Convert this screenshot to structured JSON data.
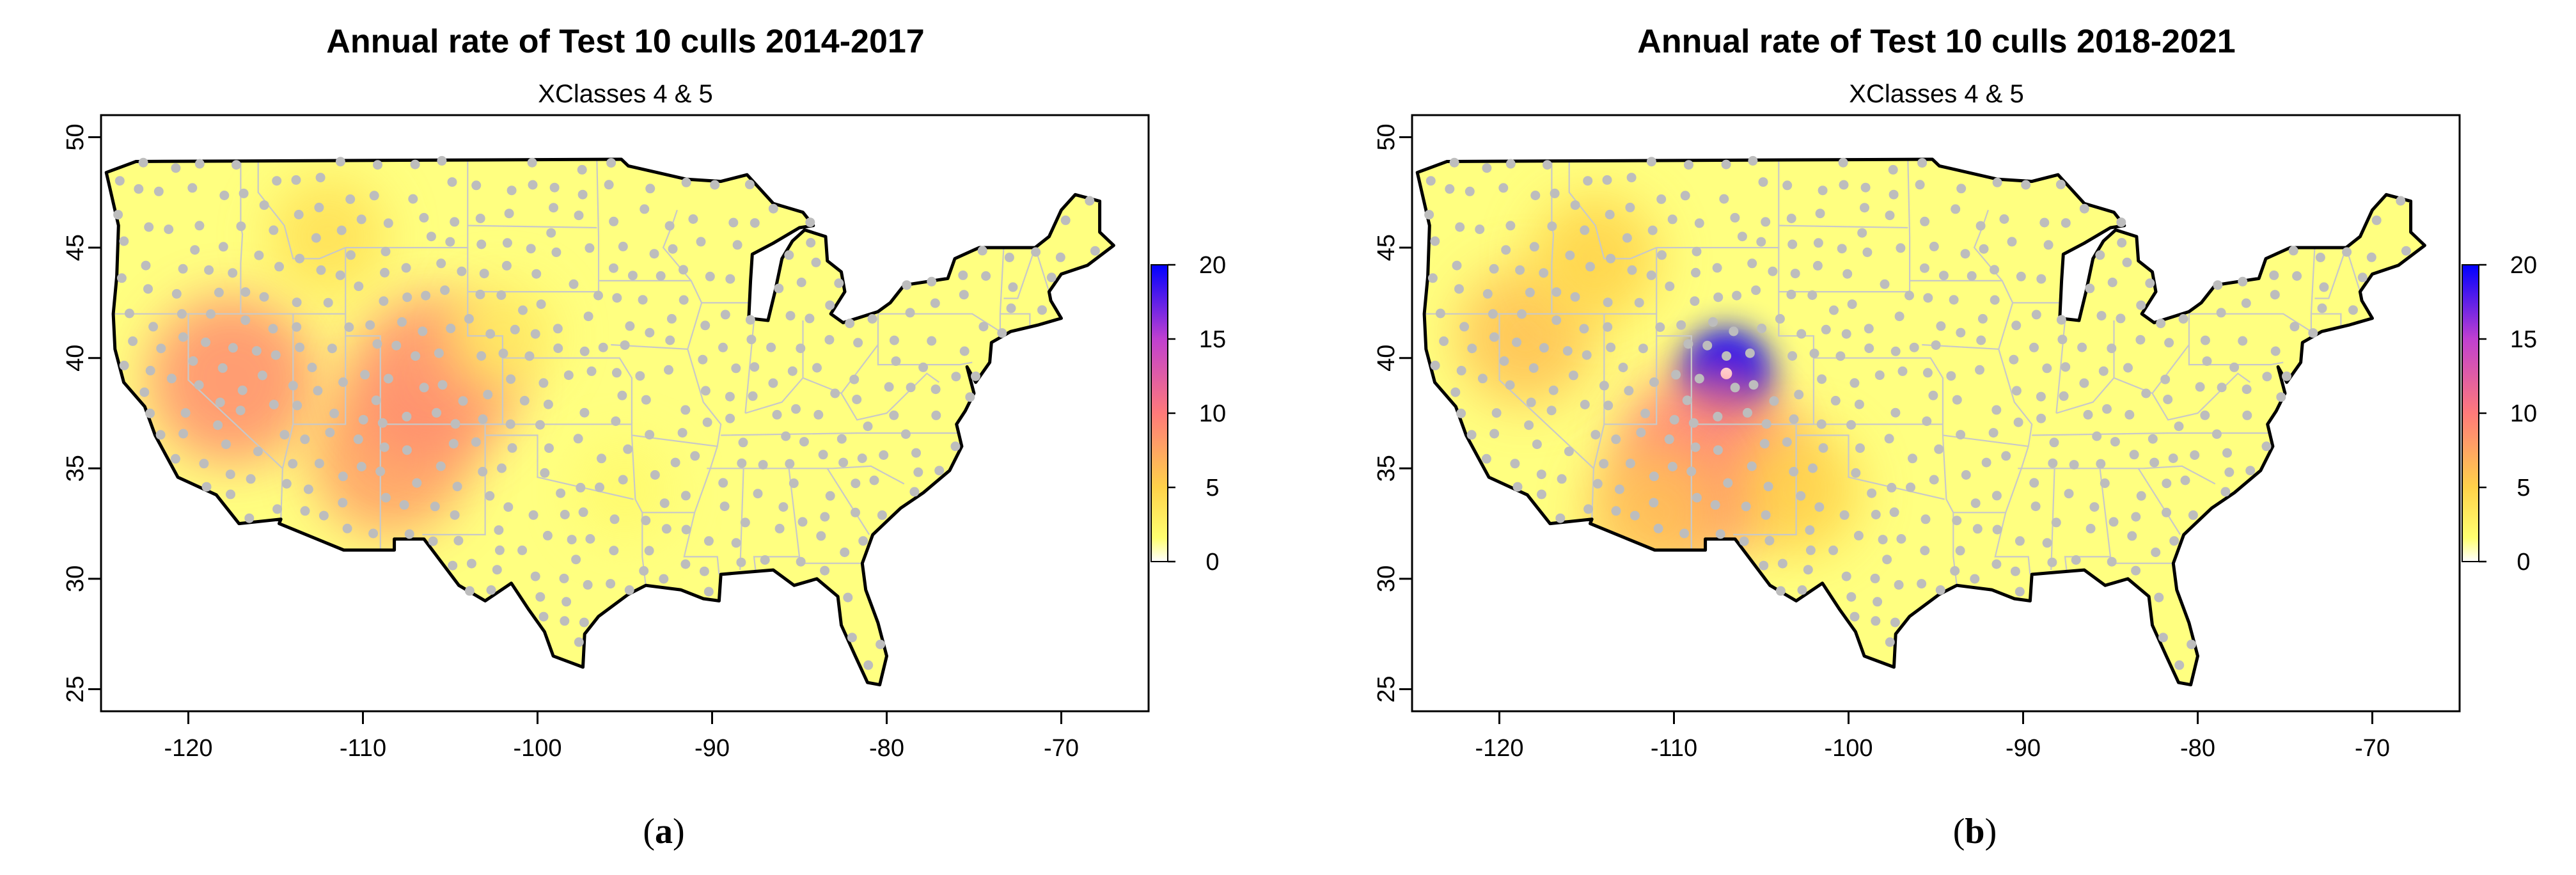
{
  "panels": [
    {
      "id": "a",
      "title": "Annual rate of Test 10 culls 2014-2017",
      "subtitle": "XClasses 4 & 5",
      "label_open": "(",
      "label_letter": "a",
      "label_close": ")",
      "hotspots": [
        {
          "lon": -117.5,
          "lat": 39.0,
          "value": 9
        },
        {
          "lon": -108.5,
          "lat": 35.5,
          "value": 8
        },
        {
          "lon": -106.0,
          "lat": 39.0,
          "value": 9
        },
        {
          "lon": -112.0,
          "lat": 45.5,
          "value": 4
        },
        {
          "lon": -102.0,
          "lat": 41.0,
          "value": 3
        },
        {
          "lon": -95.0,
          "lat": 34.0,
          "value": 2
        }
      ]
    },
    {
      "id": "b",
      "title": "Annual rate of Test 10 culls 2018-2021",
      "subtitle": "XClasses 4 & 5",
      "label_open": "(",
      "label_letter": "b",
      "label_close": ")",
      "hotspots": [
        {
          "lon": -107.0,
          "lat": 39.3,
          "value": 20
        },
        {
          "lon": -108.0,
          "lat": 35.5,
          "value": 10
        },
        {
          "lon": -118.5,
          "lat": 41.0,
          "value": 6
        },
        {
          "lon": -114.5,
          "lat": 44.5,
          "value": 5
        },
        {
          "lon": -103.0,
          "lat": 34.0,
          "value": 5
        },
        {
          "lon": -111.0,
          "lat": 33.0,
          "value": 6
        }
      ]
    }
  ],
  "map_data": {
    "x_ticks": [
      "-120",
      "-110",
      "-100",
      "-90",
      "-80",
      "-70"
    ],
    "y_ticks": [
      "25",
      "30",
      "35",
      "40",
      "45",
      "50"
    ],
    "xlim": [
      -125,
      -65
    ],
    "ylim": [
      24,
      51
    ],
    "colorbar_ticks": [
      "0",
      "5",
      "10",
      "15",
      "20"
    ],
    "colorbar_range": [
      0,
      20
    ],
    "colors": {
      "low": "#ffff80",
      "mid": "#ff7a7a",
      "high": "#0000ff",
      "station": "#bdbdbd",
      "state_border": "#c8c8c8",
      "outline": "#000000"
    }
  }
}
